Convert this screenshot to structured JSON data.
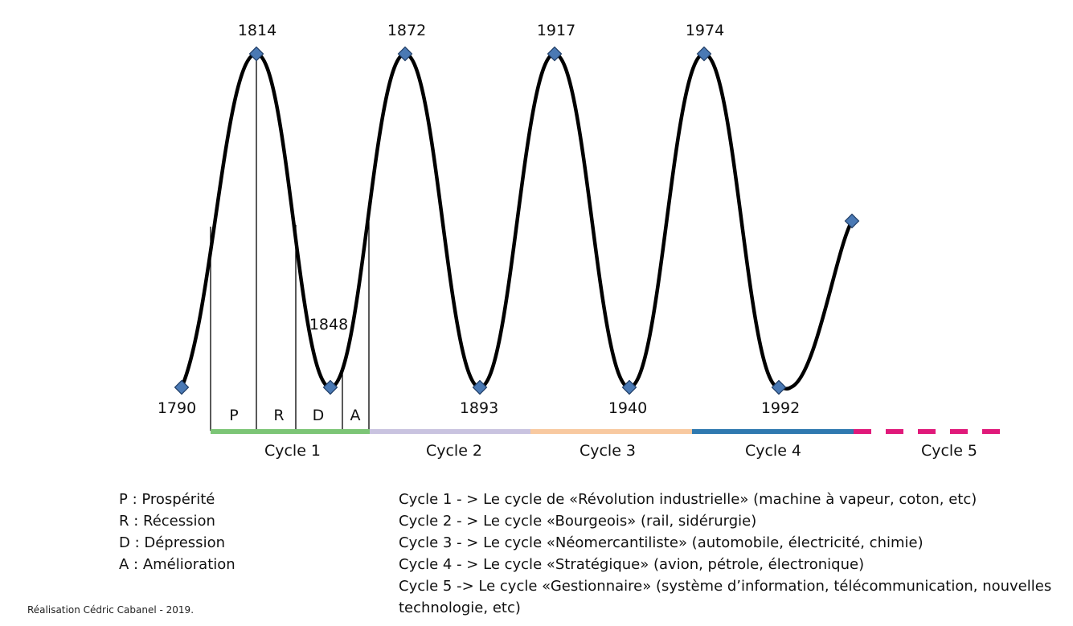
{
  "year_labels": {
    "y1790": "1790",
    "y1814": "1814",
    "y1848": "1848",
    "y1872": "1872",
    "y1893": "1893",
    "y1917": "1917",
    "y1940": "1940",
    "y1974": "1974",
    "y1992": "1992"
  },
  "phases": {
    "p": "P",
    "r": "R",
    "d": "D",
    "a": "A"
  },
  "cycles": {
    "c1": "Cycle 1",
    "c2": "Cycle 2",
    "c3": "Cycle 3",
    "c4": "Cycle 4",
    "c5": "Cycle 5"
  },
  "colors": {
    "curve": "#000000",
    "marker_fill": "#4a79b4",
    "marker_stroke": "#1f3d66",
    "cycle1": "#7cc576",
    "cycle2": "#c9c3e0",
    "cycle3": "#f8c9a0",
    "cycle4": "#2f79b0",
    "cycle5": "#e0197a"
  },
  "legend": {
    "abbr": [
      "P : Prospérité",
      "R : Récession",
      "D : Dépression",
      "A : Amélioration"
    ],
    "cycles": [
      "Cycle 1 - > Le cycle de «Révolution industrielle» (machine à vapeur, coton, etc)",
      "Cycle 2 - > Le cycle «Bourgeois» (rail, sidérurgie)",
      "Cycle 3 - > Le cycle «Néomercantiliste» (automobile, électricité, chimie)",
      "Cycle 4 - > Le cycle «Stratégique» (avion, pétrole, électronique)",
      "Cycle 5 -> Le cycle «Gestionnaire» (système d’information, télécommunication, nouvelles technologie, etc)"
    ]
  },
  "credit": "Réalisation Cédric Cabanel - 2019."
}
